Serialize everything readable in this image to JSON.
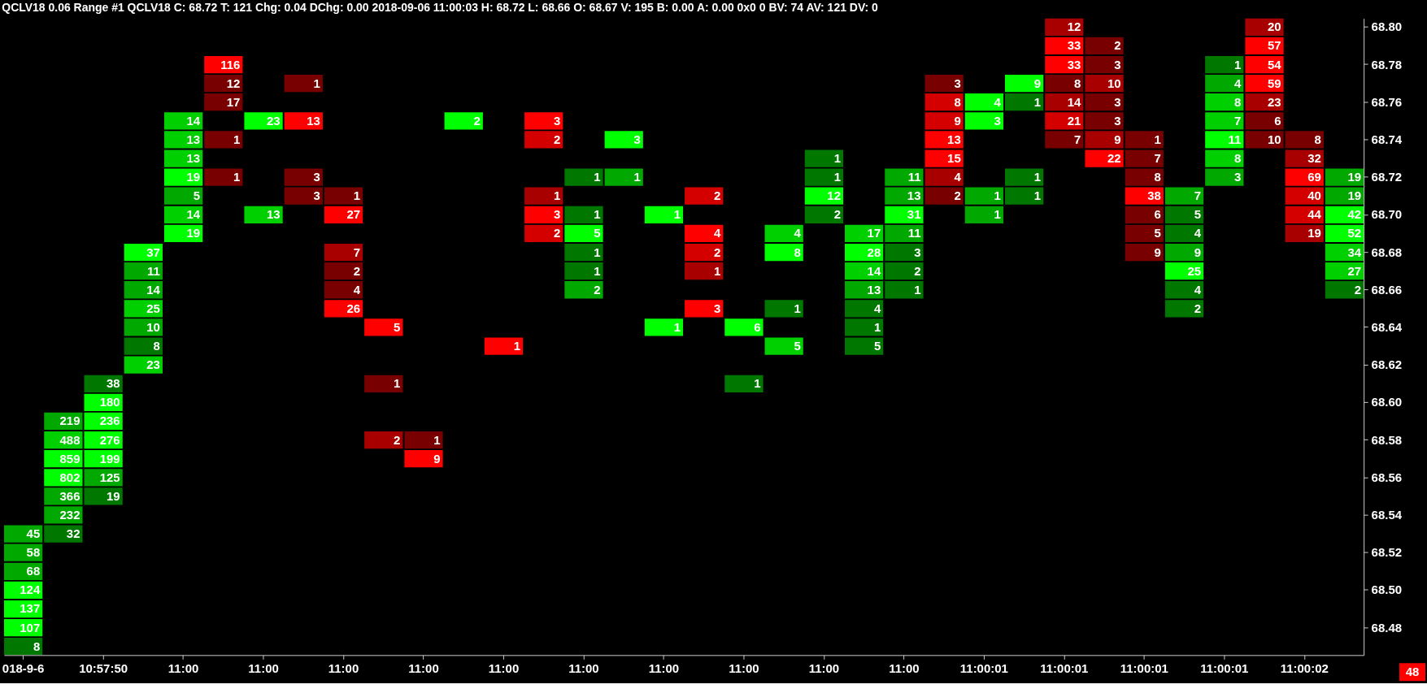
{
  "chart_data": {
    "type": "heatmap",
    "title": "QCLV18  0.06 Range  #1 QCLV18 C: 68.72 T: 121 Chg: 0.04 DChg: 0.00 2018-09-06 11:00:03 H: 68.72 L: 68.66 O: 68.67 V: 195 B: 0.00 A: 0.00 0x0 0 BV: 74 AV: 121 DV: 0",
    "categories": [
      "018-9-6",
      null,
      "10:57:50",
      null,
      "11:00",
      null,
      "11:00",
      null,
      "11:00",
      null,
      "11:00",
      null,
      "11:00",
      null,
      "11:00",
      null,
      "11:00",
      null,
      "11:00",
      null,
      "11:00",
      null,
      "11:00",
      null,
      "11:00:01",
      null,
      "11:00:01",
      null,
      "11:00:01",
      null,
      "11:00:01",
      null,
      "11:00:02",
      null
    ],
    "y_categories": [
      "68.80",
      null,
      "68.78",
      null,
      "68.76",
      null,
      "68.74",
      null,
      "68.72",
      null,
      "68.70",
      null,
      "68.68",
      null,
      "68.66",
      null,
      "68.64",
      null,
      "68.62",
      null,
      "68.60",
      null,
      "68.58",
      null,
      "68.56",
      null,
      "68.54",
      null,
      "68.52",
      null,
      "68.50",
      null,
      "68.48",
      null
    ],
    "data_labels": true,
    "annotations": [
      "48"
    ],
    "cells": [
      [
        null,
        null,
        null,
        null,
        null,
        null,
        null,
        null,
        null,
        null,
        null,
        null,
        null,
        null,
        null,
        null,
        null,
        null,
        null,
        null,
        null,
        null,
        null,
        null,
        null,
        null,
        12,
        null,
        null,
        null,
        null,
        20,
        null,
        null
      ],
      [
        null,
        null,
        null,
        null,
        null,
        null,
        null,
        null,
        null,
        null,
        null,
        null,
        null,
        null,
        null,
        null,
        null,
        null,
        null,
        null,
        null,
        null,
        null,
        null,
        null,
        null,
        33,
        2,
        null,
        null,
        null,
        57,
        null,
        null
      ],
      [
        null,
        null,
        null,
        null,
        null,
        116,
        null,
        null,
        null,
        null,
        null,
        null,
        null,
        null,
        null,
        null,
        null,
        null,
        null,
        null,
        null,
        null,
        null,
        null,
        null,
        null,
        33,
        3,
        null,
        null,
        1,
        54,
        null,
        null
      ],
      [
        null,
        null,
        null,
        null,
        null,
        12,
        null,
        1,
        null,
        null,
        null,
        null,
        null,
        null,
        null,
        null,
        null,
        null,
        null,
        null,
        null,
        null,
        null,
        3,
        null,
        9,
        8,
        10,
        null,
        null,
        4,
        59,
        null,
        null
      ],
      [
        null,
        null,
        null,
        null,
        null,
        17,
        null,
        null,
        null,
        null,
        null,
        null,
        null,
        null,
        null,
        null,
        null,
        null,
        null,
        null,
        null,
        null,
        null,
        8,
        4,
        1,
        14,
        3,
        null,
        null,
        8,
        23,
        null,
        null
      ],
      [
        null,
        null,
        null,
        null,
        14,
        null,
        23,
        13,
        null,
        null,
        null,
        2,
        null,
        3,
        null,
        null,
        null,
        null,
        null,
        null,
        null,
        null,
        null,
        9,
        3,
        null,
        21,
        3,
        null,
        null,
        7,
        6,
        null,
        null
      ],
      [
        null,
        null,
        null,
        null,
        13,
        1,
        null,
        null,
        null,
        null,
        null,
        null,
        null,
        2,
        null,
        3,
        null,
        null,
        null,
        null,
        null,
        null,
        null,
        13,
        null,
        null,
        7,
        9,
        1,
        null,
        11,
        10,
        8,
        null
      ],
      [
        null,
        null,
        null,
        null,
        13,
        null,
        null,
        null,
        null,
        null,
        null,
        null,
        null,
        null,
        null,
        null,
        null,
        null,
        null,
        null,
        1,
        null,
        null,
        15,
        null,
        null,
        null,
        22,
        7,
        null,
        8,
        null,
        32,
        null
      ],
      [
        null,
        null,
        null,
        null,
        19,
        1,
        null,
        3,
        null,
        null,
        null,
        null,
        null,
        null,
        1,
        1,
        null,
        null,
        null,
        null,
        1,
        null,
        11,
        4,
        null,
        1,
        null,
        null,
        8,
        null,
        3,
        null,
        69,
        19
      ],
      [
        null,
        null,
        null,
        null,
        5,
        null,
        null,
        3,
        1,
        null,
        null,
        null,
        null,
        1,
        null,
        null,
        null,
        2,
        null,
        null,
        12,
        null,
        13,
        2,
        1,
        1,
        null,
        null,
        38,
        7,
        null,
        null,
        40,
        19
      ],
      [
        null,
        null,
        null,
        null,
        14,
        null,
        13,
        null,
        27,
        null,
        null,
        null,
        null,
        3,
        1,
        null,
        1,
        null,
        null,
        null,
        2,
        null,
        31,
        null,
        1,
        null,
        null,
        null,
        6,
        5,
        null,
        null,
        44,
        42
      ],
      [
        null,
        null,
        null,
        null,
        19,
        null,
        null,
        null,
        null,
        null,
        null,
        null,
        null,
        2,
        5,
        null,
        null,
        4,
        null,
        4,
        null,
        17,
        11,
        null,
        null,
        null,
        null,
        null,
        5,
        4,
        null,
        null,
        19,
        52
      ],
      [
        null,
        null,
        null,
        37,
        null,
        null,
        null,
        null,
        7,
        null,
        null,
        null,
        null,
        null,
        1,
        null,
        null,
        2,
        null,
        8,
        null,
        28,
        3,
        null,
        null,
        null,
        null,
        null,
        9,
        9,
        null,
        null,
        null,
        34
      ],
      [
        null,
        null,
        null,
        11,
        null,
        null,
        null,
        null,
        2,
        null,
        null,
        null,
        null,
        null,
        1,
        null,
        null,
        1,
        null,
        null,
        null,
        14,
        2,
        null,
        null,
        null,
        null,
        null,
        null,
        25,
        null,
        null,
        null,
        27
      ],
      [
        null,
        null,
        null,
        14,
        null,
        null,
        null,
        null,
        4,
        null,
        null,
        null,
        null,
        null,
        2,
        null,
        null,
        null,
        null,
        null,
        null,
        13,
        1,
        null,
        null,
        null,
        null,
        null,
        null,
        4,
        null,
        null,
        null,
        2
      ],
      [
        null,
        null,
        null,
        25,
        null,
        null,
        null,
        null,
        26,
        null,
        null,
        null,
        null,
        null,
        null,
        null,
        null,
        3,
        null,
        1,
        null,
        4,
        null,
        null,
        null,
        null,
        null,
        null,
        null,
        2,
        null,
        null,
        null,
        null
      ],
      [
        null,
        null,
        null,
        10,
        null,
        null,
        null,
        null,
        null,
        5,
        null,
        null,
        null,
        null,
        null,
        null,
        1,
        null,
        6,
        null,
        null,
        1,
        null,
        null,
        null,
        null,
        null,
        null,
        null,
        null,
        null,
        null,
        null,
        null
      ],
      [
        null,
        null,
        null,
        8,
        null,
        null,
        null,
        null,
        null,
        null,
        null,
        null,
        1,
        null,
        null,
        null,
        null,
        null,
        null,
        5,
        null,
        5,
        null,
        null,
        null,
        null,
        null,
        null,
        null,
        null,
        null,
        null,
        null,
        null
      ],
      [
        null,
        null,
        null,
        23,
        null,
        null,
        null,
        null,
        null,
        null,
        null,
        null,
        null,
        null,
        null,
        null,
        null,
        null,
        null,
        null,
        null,
        null,
        null,
        null,
        null,
        null,
        null,
        null,
        null,
        null,
        null,
        null,
        null,
        null
      ],
      [
        null,
        null,
        38,
        null,
        null,
        null,
        null,
        null,
        null,
        1,
        null,
        null,
        null,
        null,
        null,
        null,
        null,
        null,
        1,
        null,
        null,
        null,
        null,
        null,
        null,
        null,
        null,
        null,
        null,
        null,
        null,
        null,
        null,
        null
      ],
      [
        null,
        null,
        180,
        null,
        null,
        null,
        null,
        null,
        null,
        null,
        null,
        null,
        null,
        null,
        null,
        null,
        null,
        null,
        null,
        null,
        null,
        null,
        null,
        null,
        null,
        null,
        null,
        null,
        null,
        null,
        null,
        null,
        null,
        null
      ],
      [
        null,
        219,
        236,
        null,
        null,
        null,
        null,
        null,
        null,
        null,
        null,
        null,
        null,
        null,
        null,
        null,
        null,
        null,
        null,
        null,
        null,
        null,
        null,
        null,
        null,
        null,
        null,
        null,
        null,
        null,
        null,
        null,
        null,
        null
      ],
      [
        null,
        488,
        276,
        null,
        null,
        null,
        null,
        null,
        null,
        2,
        1,
        null,
        null,
        null,
        null,
        null,
        null,
        null,
        null,
        null,
        null,
        null,
        null,
        null,
        null,
        null,
        null,
        null,
        null,
        null,
        null,
        null,
        null,
        null
      ],
      [
        null,
        859,
        199,
        null,
        null,
        null,
        null,
        null,
        null,
        null,
        9,
        null,
        null,
        null,
        null,
        null,
        null,
        null,
        null,
        null,
        null,
        null,
        null,
        null,
        null,
        null,
        null,
        null,
        null,
        null,
        null,
        null,
        null,
        null
      ],
      [
        null,
        802,
        125,
        null,
        null,
        null,
        null,
        null,
        null,
        null,
        null,
        null,
        null,
        null,
        null,
        null,
        null,
        null,
        null,
        null,
        null,
        null,
        null,
        null,
        null,
        null,
        null,
        null,
        null,
        null,
        null,
        null,
        null,
        null
      ],
      [
        null,
        366,
        19,
        null,
        null,
        null,
        null,
        null,
        null,
        null,
        null,
        null,
        null,
        null,
        null,
        null,
        null,
        null,
        null,
        null,
        null,
        null,
        null,
        null,
        null,
        null,
        null,
        null,
        null,
        null,
        null,
        null,
        null,
        null
      ],
      [
        null,
        232,
        null,
        null,
        null,
        null,
        null,
        null,
        null,
        null,
        null,
        null,
        null,
        null,
        null,
        null,
        null,
        null,
        null,
        null,
        null,
        null,
        null,
        null,
        null,
        null,
        null,
        null,
        null,
        null,
        null,
        null,
        null,
        null
      ],
      [
        45,
        32,
        null,
        null,
        null,
        null,
        null,
        null,
        null,
        null,
        null,
        null,
        null,
        null,
        null,
        null,
        null,
        null,
        null,
        null,
        null,
        null,
        null,
        null,
        null,
        null,
        null,
        null,
        null,
        null,
        null,
        null,
        null,
        null
      ],
      [
        58,
        null,
        null,
        null,
        null,
        null,
        null,
        null,
        null,
        null,
        null,
        null,
        null,
        null,
        null,
        null,
        null,
        null,
        null,
        null,
        null,
        null,
        null,
        null,
        null,
        null,
        null,
        null,
        null,
        null,
        null,
        null,
        null,
        null
      ],
      [
        68,
        null,
        null,
        null,
        null,
        null,
        null,
        null,
        null,
        null,
        null,
        null,
        null,
        null,
        null,
        null,
        null,
        null,
        null,
        null,
        null,
        null,
        null,
        null,
        null,
        null,
        null,
        null,
        null,
        null,
        null,
        null,
        null,
        null
      ],
      [
        124,
        null,
        null,
        null,
        null,
        null,
        null,
        null,
        null,
        null,
        null,
        null,
        null,
        null,
        null,
        null,
        null,
        null,
        null,
        null,
        null,
        null,
        null,
        null,
        null,
        null,
        null,
        null,
        null,
        null,
        null,
        null,
        null,
        null
      ],
      [
        137,
        null,
        null,
        null,
        null,
        null,
        null,
        null,
        null,
        null,
        null,
        null,
        null,
        null,
        null,
        null,
        null,
        null,
        null,
        null,
        null,
        null,
        null,
        null,
        null,
        null,
        null,
        null,
        null,
        null,
        null,
        null,
        null,
        null
      ],
      [
        107,
        null,
        null,
        null,
        null,
        null,
        null,
        null,
        null,
        null,
        null,
        null,
        null,
        null,
        null,
        null,
        null,
        null,
        null,
        null,
        null,
        null,
        null,
        null,
        null,
        null,
        null,
        null,
        null,
        null,
        null,
        null,
        null,
        null
      ],
      [
        8,
        null,
        null,
        null,
        null,
        null,
        null,
        null,
        null,
        null,
        null,
        null,
        null,
        null,
        null,
        null,
        null,
        null,
        null,
        null,
        null,
        null,
        null,
        null,
        null,
        null,
        null,
        null,
        null,
        null,
        null,
        null,
        null,
        null
      ]
    ],
    "colors": [
      [
        null,
        null,
        null,
        null,
        null,
        null,
        null,
        null,
        null,
        null,
        null,
        null,
        null,
        null,
        null,
        null,
        null,
        null,
        null,
        null,
        null,
        null,
        null,
        null,
        null,
        null,
        "#a80000",
        null,
        null,
        null,
        null,
        "#a80000",
        null,
        null
      ],
      [
        null,
        null,
        null,
        null,
        null,
        null,
        null,
        null,
        null,
        null,
        null,
        null,
        null,
        null,
        null,
        null,
        null,
        null,
        null,
        null,
        null,
        null,
        null,
        null,
        null,
        null,
        "#ff0000",
        "#780000",
        null,
        null,
        null,
        "#ff0000",
        null,
        null
      ],
      [
        null,
        null,
        null,
        null,
        null,
        "#ff0000",
        null,
        null,
        null,
        null,
        null,
        null,
        null,
        null,
        null,
        null,
        null,
        null,
        null,
        null,
        null,
        null,
        null,
        null,
        null,
        null,
        "#ff0000",
        "#780000",
        null,
        null,
        "#007800",
        "#ff0000",
        null,
        null
      ],
      [
        null,
        null,
        null,
        null,
        null,
        "#780000",
        null,
        "#780000",
        null,
        null,
        null,
        null,
        null,
        null,
        null,
        null,
        null,
        null,
        null,
        null,
        null,
        null,
        null,
        "#780000",
        null,
        "#00ff00",
        "#780000",
        "#a80000",
        null,
        null,
        "#00a800",
        "#ff0000",
        null,
        null
      ],
      [
        null,
        null,
        null,
        null,
        null,
        "#780000",
        null,
        null,
        null,
        null,
        null,
        null,
        null,
        null,
        null,
        null,
        null,
        null,
        null,
        null,
        null,
        null,
        null,
        "#d40000",
        "#00ff00",
        "#007800",
        "#a80000",
        "#780000",
        null,
        null,
        "#00d000",
        "#a80000",
        null,
        null
      ],
      [
        null,
        null,
        null,
        null,
        "#00d000",
        null,
        "#00ff00",
        "#ff0000",
        null,
        null,
        null,
        "#00ff00",
        null,
        "#ff0000",
        null,
        null,
        null,
        null,
        null,
        null,
        null,
        null,
        null,
        "#d40000",
        "#00ff00",
        null,
        "#d40000",
        "#780000",
        null,
        null,
        "#00d000",
        "#780000",
        null,
        null
      ],
      [
        null,
        null,
        null,
        null,
        "#00d000",
        "#780000",
        null,
        null,
        null,
        null,
        null,
        null,
        null,
        "#d40000",
        null,
        "#00ff00",
        null,
        null,
        null,
        null,
        null,
        null,
        null,
        "#ff0000",
        null,
        null,
        "#780000",
        "#a80000",
        "#780000",
        null,
        "#00ff00",
        "#780000",
        "#780000",
        null
      ],
      [
        null,
        null,
        null,
        null,
        "#00d000",
        null,
        null,
        null,
        null,
        null,
        null,
        null,
        null,
        null,
        null,
        null,
        null,
        null,
        null,
        null,
        "#007800",
        null,
        null,
        "#ff0000",
        null,
        null,
        null,
        "#ff0000",
        "#780000",
        null,
        "#00d000",
        null,
        "#a80000",
        null
      ],
      [
        null,
        null,
        null,
        null,
        "#00ff00",
        "#780000",
        null,
        "#780000",
        null,
        null,
        null,
        null,
        null,
        null,
        "#007800",
        "#00a800",
        null,
        null,
        null,
        null,
        "#007800",
        null,
        "#00a800",
        "#a80000",
        null,
        "#007800",
        null,
        null,
        "#780000",
        null,
        "#00a800",
        null,
        "#ff0000",
        "#00a800"
      ],
      [
        null,
        null,
        null,
        null,
        "#00a800",
        null,
        null,
        "#780000",
        "#780000",
        null,
        null,
        null,
        null,
        "#a80000",
        null,
        null,
        null,
        "#d40000",
        null,
        null,
        "#00ff00",
        null,
        "#00a800",
        "#780000",
        "#00a800",
        "#007800",
        null,
        null,
        "#ff0000",
        "#00a800",
        null,
        null,
        "#d40000",
        "#00a800"
      ],
      [
        null,
        null,
        null,
        null,
        "#00d000",
        null,
        "#00d000",
        null,
        "#ff0000",
        null,
        null,
        null,
        null,
        "#ff0000",
        "#007800",
        null,
        "#00ff00",
        null,
        null,
        null,
        "#007800",
        null,
        "#00ff00",
        null,
        "#00a800",
        null,
        null,
        null,
        "#780000",
        "#007800",
        null,
        null,
        "#d40000",
        "#00ff00"
      ],
      [
        null,
        null,
        null,
        null,
        "#00ff00",
        null,
        null,
        null,
        null,
        null,
        null,
        null,
        null,
        "#d40000",
        "#00ff00",
        null,
        null,
        "#ff0000",
        null,
        "#00d000",
        null,
        "#00d000",
        "#00a800",
        null,
        null,
        null,
        null,
        null,
        "#780000",
        "#007800",
        null,
        null,
        "#a80000",
        "#00ff00"
      ],
      [
        null,
        null,
        null,
        "#00ff00",
        null,
        null,
        null,
        null,
        "#a80000",
        null,
        null,
        null,
        null,
        null,
        "#007800",
        null,
        null,
        "#d40000",
        null,
        "#00ff00",
        null,
        "#00ff00",
        "#007800",
        null,
        null,
        null,
        null,
        null,
        "#780000",
        "#00a800",
        null,
        null,
        null,
        "#00d000"
      ],
      [
        null,
        null,
        null,
        "#00a800",
        null,
        null,
        null,
        null,
        "#780000",
        null,
        null,
        null,
        null,
        null,
        "#007800",
        null,
        null,
        "#a80000",
        null,
        null,
        null,
        "#00d000",
        "#007800",
        null,
        null,
        null,
        null,
        null,
        null,
        "#00ff00",
        null,
        null,
        null,
        "#00d000"
      ],
      [
        null,
        null,
        null,
        "#00a800",
        null,
        null,
        null,
        null,
        "#780000",
        null,
        null,
        null,
        null,
        null,
        "#00a800",
        null,
        null,
        null,
        null,
        null,
        null,
        "#00a800",
        "#007800",
        null,
        null,
        null,
        null,
        null,
        null,
        "#007800",
        null,
        null,
        null,
        "#007800"
      ],
      [
        null,
        null,
        null,
        "#00d000",
        null,
        null,
        null,
        null,
        "#ff0000",
        null,
        null,
        null,
        null,
        null,
        null,
        null,
        null,
        "#ff0000",
        null,
        "#007800",
        null,
        "#007800",
        null,
        null,
        null,
        null,
        null,
        null,
        null,
        "#007800",
        null,
        null,
        null,
        null
      ],
      [
        null,
        null,
        null,
        "#00a800",
        null,
        null,
        null,
        null,
        null,
        "#ff0000",
        null,
        null,
        null,
        null,
        null,
        null,
        "#00ff00",
        null,
        "#00ff00",
        null,
        null,
        "#007800",
        null,
        null,
        null,
        null,
        null,
        null,
        null,
        null,
        null,
        null,
        null,
        null
      ],
      [
        null,
        null,
        null,
        "#007800",
        null,
        null,
        null,
        null,
        null,
        null,
        null,
        null,
        "#ff0000",
        null,
        null,
        null,
        null,
        null,
        null,
        "#00d000",
        null,
        "#007800",
        null,
        null,
        null,
        null,
        null,
        null,
        null,
        null,
        null,
        null,
        null,
        null
      ],
      [
        null,
        null,
        null,
        "#00d000",
        null,
        null,
        null,
        null,
        null,
        null,
        null,
        null,
        null,
        null,
        null,
        null,
        null,
        null,
        null,
        null,
        null,
        null,
        null,
        null,
        null,
        null,
        null,
        null,
        null,
        null,
        null,
        null,
        null,
        null
      ],
      [
        null,
        null,
        "#007800",
        null,
        null,
        null,
        null,
        null,
        null,
        "#780000",
        null,
        null,
        null,
        null,
        null,
        null,
        null,
        null,
        "#007800",
        null,
        null,
        null,
        null,
        null,
        null,
        null,
        null,
        null,
        null,
        null,
        null,
        null,
        null,
        null
      ],
      [
        null,
        null,
        "#00ff00",
        null,
        null,
        null,
        null,
        null,
        null,
        null,
        null,
        null,
        null,
        null,
        null,
        null,
        null,
        null,
        null,
        null,
        null,
        null,
        null,
        null,
        null,
        null,
        null,
        null,
        null,
        null,
        null,
        null,
        null,
        null
      ],
      [
        null,
        "#00a800",
        "#00ff00",
        null,
        null,
        null,
        null,
        null,
        null,
        null,
        null,
        null,
        null,
        null,
        null,
        null,
        null,
        null,
        null,
        null,
        null,
        null,
        null,
        null,
        null,
        null,
        null,
        null,
        null,
        null,
        null,
        null,
        null,
        null
      ],
      [
        null,
        "#00d000",
        "#00ff00",
        null,
        null,
        null,
        null,
        null,
        null,
        "#a80000",
        "#780000",
        null,
        null,
        null,
        null,
        null,
        null,
        null,
        null,
        null,
        null,
        null,
        null,
        null,
        null,
        null,
        null,
        null,
        null,
        null,
        null,
        null,
        null,
        null
      ],
      [
        null,
        "#00ff00",
        "#00ff00",
        null,
        null,
        null,
        null,
        null,
        null,
        null,
        "#ff0000",
        null,
        null,
        null,
        null,
        null,
        null,
        null,
        null,
        null,
        null,
        null,
        null,
        null,
        null,
        null,
        null,
        null,
        null,
        null,
        null,
        null,
        null,
        null
      ],
      [
        null,
        "#00ff00",
        "#00a800",
        null,
        null,
        null,
        null,
        null,
        null,
        null,
        null,
        null,
        null,
        null,
        null,
        null,
        null,
        null,
        null,
        null,
        null,
        null,
        null,
        null,
        null,
        null,
        null,
        null,
        null,
        null,
        null,
        null,
        null,
        null
      ],
      [
        null,
        "#00a800",
        "#007800",
        null,
        null,
        null,
        null,
        null,
        null,
        null,
        null,
        null,
        null,
        null,
        null,
        null,
        null,
        null,
        null,
        null,
        null,
        null,
        null,
        null,
        null,
        null,
        null,
        null,
        null,
        null,
        null,
        null,
        null,
        null
      ],
      [
        null,
        "#00a800",
        null,
        null,
        null,
        null,
        null,
        null,
        null,
        null,
        null,
        null,
        null,
        null,
        null,
        null,
        null,
        null,
        null,
        null,
        null,
        null,
        null,
        null,
        null,
        null,
        null,
        null,
        null,
        null,
        null,
        null,
        null,
        null
      ],
      [
        "#00a800",
        "#007800",
        null,
        null,
        null,
        null,
        null,
        null,
        null,
        null,
        null,
        null,
        null,
        null,
        null,
        null,
        null,
        null,
        null,
        null,
        null,
        null,
        null,
        null,
        null,
        null,
        null,
        null,
        null,
        null,
        null,
        null,
        null,
        null
      ],
      [
        "#00a800",
        null,
        null,
        null,
        null,
        null,
        null,
        null,
        null,
        null,
        null,
        null,
        null,
        null,
        null,
        null,
        null,
        null,
        null,
        null,
        null,
        null,
        null,
        null,
        null,
        null,
        null,
        null,
        null,
        null,
        null,
        null,
        null,
        null
      ],
      [
        "#00a800",
        null,
        null,
        null,
        null,
        null,
        null,
        null,
        null,
        null,
        null,
        null,
        null,
        null,
        null,
        null,
        null,
        null,
        null,
        null,
        null,
        null,
        null,
        null,
        null,
        null,
        null,
        null,
        null,
        null,
        null,
        null,
        null,
        null
      ],
      [
        "#00ff00",
        null,
        null,
        null,
        null,
        null,
        null,
        null,
        null,
        null,
        null,
        null,
        null,
        null,
        null,
        null,
        null,
        null,
        null,
        null,
        null,
        null,
        null,
        null,
        null,
        null,
        null,
        null,
        null,
        null,
        null,
        null,
        null,
        null
      ],
      [
        "#00ff00",
        null,
        null,
        null,
        null,
        null,
        null,
        null,
        null,
        null,
        null,
        null,
        null,
        null,
        null,
        null,
        null,
        null,
        null,
        null,
        null,
        null,
        null,
        null,
        null,
        null,
        null,
        null,
        null,
        null,
        null,
        null,
        null,
        null
      ],
      [
        "#00ff00",
        null,
        null,
        null,
        null,
        null,
        null,
        null,
        null,
        null,
        null,
        null,
        null,
        null,
        null,
        null,
        null,
        null,
        null,
        null,
        null,
        null,
        null,
        null,
        null,
        null,
        null,
        null,
        null,
        null,
        null,
        null,
        null,
        null
      ],
      [
        "#007800",
        null,
        null,
        null,
        null,
        null,
        null,
        null,
        null,
        null,
        null,
        null,
        null,
        null,
        null,
        null,
        null,
        null,
        null,
        null,
        null,
        null,
        null,
        null,
        null,
        null,
        null,
        null,
        null,
        null,
        null,
        null,
        null,
        null
      ]
    ]
  }
}
